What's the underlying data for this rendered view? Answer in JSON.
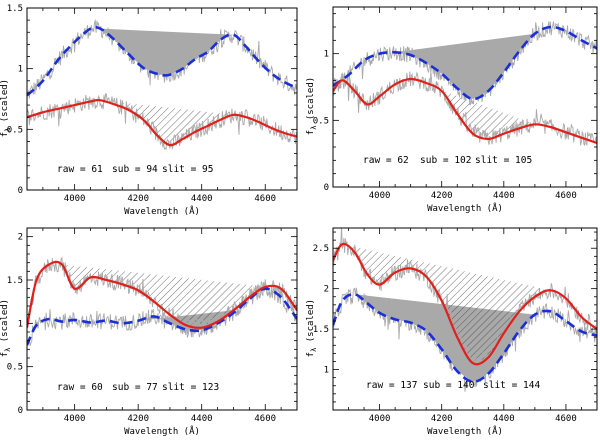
{
  "figure": {
    "colors": {
      "blue": "#1a2fd6",
      "red": "#e0201b",
      "gray": "#a9a9a9",
      "axes": "#000000"
    }
  },
  "chart_data": [
    {
      "type": "line",
      "panel": "top-left",
      "xlabel": "Wavelength (Å)",
      "ylabel": "f",
      "ylabel_sub": "λ",
      "ylabel_suffix": " (scaled)",
      "xlim": [
        3850,
        4700
      ],
      "ylim": [
        0,
        1.5
      ],
      "xticks": [
        4000,
        4200,
        4400,
        4600
      ],
      "yticks": [
        0,
        0.5,
        1,
        1.5
      ],
      "ytick_labels": [
        "0",
        "0.5",
        "1",
        "1.5"
      ],
      "annotations": [
        {
          "text": "raw = 61"
        },
        {
          "text": "sub = 94"
        },
        {
          "text": "slit = 95"
        }
      ],
      "series": [
        {
          "name": "blue-dashed",
          "x": [
            3850,
            3900,
            3950,
            4000,
            4050,
            4080,
            4120,
            4170,
            4220,
            4270,
            4300,
            4340,
            4380,
            4420,
            4460,
            4500,
            4540,
            4580,
            4620,
            4660,
            4700
          ],
          "y": [
            0.78,
            0.9,
            1.08,
            1.22,
            1.33,
            1.33,
            1.25,
            1.12,
            1.0,
            0.95,
            0.95,
            1.0,
            1.08,
            1.14,
            1.24,
            1.28,
            1.18,
            1.06,
            0.96,
            0.89,
            0.84
          ]
        },
        {
          "name": "red",
          "x": [
            3850,
            3900,
            3950,
            4000,
            4050,
            4080,
            4120,
            4170,
            4220,
            4260,
            4300,
            4340,
            4380,
            4420,
            4460,
            4500,
            4540,
            4580,
            4620,
            4660,
            4700
          ],
          "y": [
            0.6,
            0.64,
            0.67,
            0.7,
            0.73,
            0.74,
            0.71,
            0.66,
            0.57,
            0.45,
            0.37,
            0.42,
            0.48,
            0.53,
            0.58,
            0.62,
            0.6,
            0.56,
            0.51,
            0.47,
            0.44
          ]
        }
      ],
      "gray_fill": {
        "chord": [
          [
            4080,
            1.33
          ],
          [
            4500,
            1.28
          ]
        ],
        "curve": "blue-dashed"
      },
      "hatch_fill": {
        "chord": [
          [
            4080,
            0.74
          ],
          [
            4500,
            0.62
          ]
        ],
        "curve": "red"
      }
    },
    {
      "type": "line",
      "panel": "top-right",
      "xlabel": "Wavelength (Å)",
      "ylabel": "f",
      "ylabel_sub": "λ",
      "ylabel_suffix": " (scaled)",
      "xlim": [
        3850,
        4700
      ],
      "ylim": [
        0,
        1.35
      ],
      "xticks": [
        4000,
        4200,
        4400,
        4600
      ],
      "yticks": [
        0,
        0.5,
        1
      ],
      "ytick_labels": [
        "0",
        "0.5",
        "1"
      ],
      "annotations": [
        {
          "text": "raw = 62"
        },
        {
          "text": "sub = 102"
        },
        {
          "text": "slit = 105"
        }
      ],
      "series": [
        {
          "name": "blue-dashed",
          "x": [
            3850,
            3900,
            3950,
            4000,
            4050,
            4100,
            4150,
            4200,
            4250,
            4300,
            4350,
            4400,
            4450,
            4500,
            4550,
            4600,
            4650,
            4700
          ],
          "y": [
            0.76,
            0.84,
            0.95,
            1.0,
            1.01,
            0.99,
            0.93,
            0.85,
            0.74,
            0.66,
            0.72,
            0.86,
            1.02,
            1.15,
            1.2,
            1.17,
            1.1,
            1.04
          ]
        },
        {
          "name": "red",
          "x": [
            3850,
            3880,
            3920,
            3960,
            4000,
            4050,
            4100,
            4150,
            4200,
            4250,
            4300,
            4350,
            4400,
            4450,
            4500,
            4550,
            4600,
            4650,
            4700
          ],
          "y": [
            0.72,
            0.8,
            0.72,
            0.62,
            0.68,
            0.77,
            0.81,
            0.78,
            0.72,
            0.55,
            0.4,
            0.36,
            0.4,
            0.44,
            0.47,
            0.45,
            0.41,
            0.37,
            0.33
          ]
        }
      ],
      "gray_fill": {
        "chord": [
          [
            4050,
            1.01
          ],
          [
            4500,
            1.15
          ]
        ],
        "curve": "blue-dashed"
      },
      "hatch_fill": {
        "chord": [
          [
            4100,
            0.81
          ],
          [
            4500,
            0.47
          ]
        ],
        "curve": "red"
      }
    },
    {
      "type": "line",
      "panel": "bottom-left",
      "xlabel": "Wavelength (Å)",
      "ylabel": "f",
      "ylabel_sub": "λ",
      "ylabel_suffix": " (scaled)",
      "xlim": [
        3850,
        4700
      ],
      "ylim": [
        0,
        2.1
      ],
      "xticks": [
        4000,
        4200,
        4400,
        4600
      ],
      "yticks": [
        0,
        0.5,
        1,
        1.5,
        2
      ],
      "ytick_labels": [
        "0",
        "0.5",
        "1",
        "1.5",
        "2"
      ],
      "annotations": [
        {
          "text": "raw = 60"
        },
        {
          "text": "sub = 77"
        },
        {
          "text": "slit = 123"
        }
      ],
      "series": [
        {
          "name": "blue-dashed",
          "x": [
            3850,
            3880,
            3920,
            3960,
            4000,
            4050,
            4100,
            4150,
            4200,
            4250,
            4300,
            4350,
            4400,
            4450,
            4500,
            4550,
            4600,
            4650,
            4700
          ],
          "y": [
            0.75,
            0.98,
            1.05,
            1.02,
            1.04,
            1.01,
            1.03,
            1.0,
            1.03,
            1.08,
            1.0,
            0.93,
            0.92,
            1.0,
            1.12,
            1.28,
            1.4,
            1.3,
            1.05
          ]
        },
        {
          "name": "red",
          "x": [
            3850,
            3880,
            3920,
            3960,
            4000,
            4050,
            4100,
            4150,
            4200,
            4250,
            4300,
            4350,
            4400,
            4450,
            4500,
            4550,
            4600,
            4650,
            4700
          ],
          "y": [
            0.95,
            1.5,
            1.68,
            1.68,
            1.4,
            1.53,
            1.5,
            1.45,
            1.38,
            1.25,
            1.1,
            0.98,
            0.95,
            1.02,
            1.15,
            1.3,
            1.42,
            1.4,
            1.15
          ]
        }
      ],
      "gray_fill": {
        "chord": [
          [
            4200,
            1.03
          ],
          [
            4500,
            1.15
          ]
        ],
        "curve": "blue-dashed"
      },
      "hatch_fill": {
        "chord": [
          [
            3960,
            1.68
          ],
          [
            4600,
            1.42
          ]
        ],
        "curve": "red"
      }
    },
    {
      "type": "line",
      "panel": "bottom-right",
      "xlabel": "Wavelength (Å)",
      "ylabel": "f",
      "ylabel_sub": "λ",
      "ylabel_suffix": " (scaled)",
      "xlim": [
        3850,
        4700
      ],
      "ylim": [
        0.5,
        2.75
      ],
      "xticks": [
        4000,
        4200,
        4400,
        4600
      ],
      "yticks": [
        1,
        1.5,
        2,
        2.5
      ],
      "ytick_labels": [
        "1",
        "1.5",
        "2",
        "2.5"
      ],
      "annotations": [
        {
          "text": "raw = 137"
        },
        {
          "text": "sub = 140"
        },
        {
          "text": "slit = 144"
        }
      ],
      "series": [
        {
          "name": "blue-dashed",
          "x": [
            3850,
            3880,
            3920,
            3960,
            4000,
            4050,
            4100,
            4150,
            4200,
            4250,
            4300,
            4350,
            4400,
            4450,
            4500,
            4550,
            4600,
            4650,
            4700
          ],
          "y": [
            1.55,
            1.85,
            1.93,
            1.82,
            1.7,
            1.62,
            1.58,
            1.48,
            1.25,
            0.98,
            0.85,
            0.95,
            1.2,
            1.48,
            1.68,
            1.72,
            1.6,
            1.47,
            1.42
          ]
        },
        {
          "name": "red",
          "x": [
            3850,
            3880,
            3920,
            3960,
            4000,
            4050,
            4100,
            4150,
            4200,
            4250,
            4300,
            4350,
            4400,
            4450,
            4500,
            4550,
            4600,
            4650,
            4700
          ],
          "y": [
            2.35,
            2.55,
            2.45,
            2.18,
            2.05,
            2.2,
            2.25,
            2.15,
            1.85,
            1.4,
            1.08,
            1.15,
            1.45,
            1.72,
            1.9,
            1.98,
            1.88,
            1.65,
            1.5
          ]
        }
      ],
      "gray_fill": {
        "chord": [
          [
            3920,
            1.93
          ],
          [
            4500,
            1.68
          ]
        ],
        "curve": "blue-dashed"
      },
      "hatch_fill": {
        "chord": [
          [
            3880,
            2.55
          ],
          [
            4550,
            1.98
          ]
        ],
        "curve": "red"
      }
    }
  ]
}
